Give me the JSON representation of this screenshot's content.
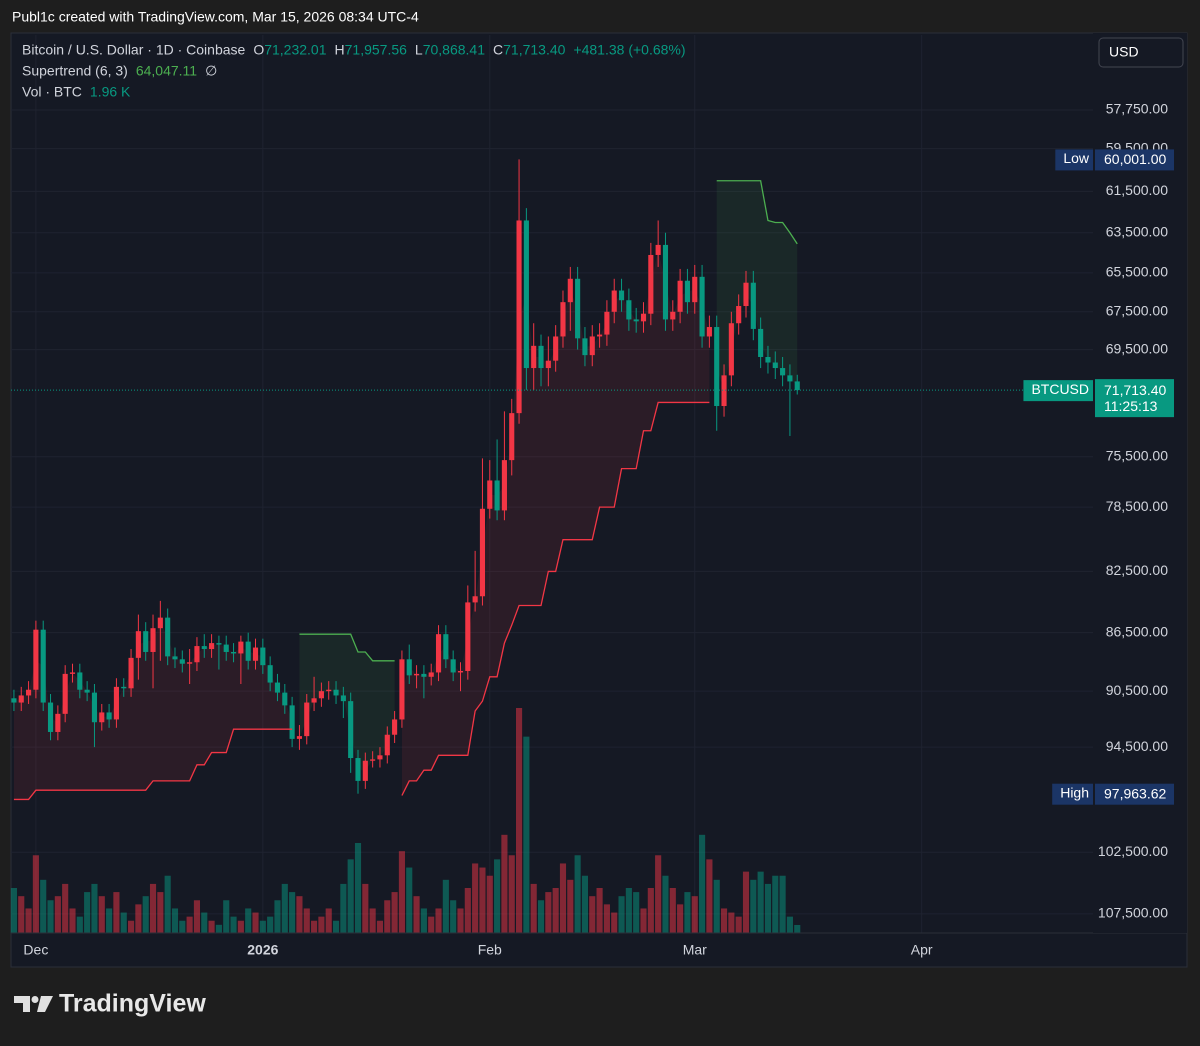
{
  "header": "Publ1c created with TradingView.com, Mar 15, 2026 08:34 UTC-4",
  "brand": "TradingView",
  "chart_data": {
    "type": "candlestick",
    "title": "Bitcoin / U.S. Dollar · 1D · Coinbase",
    "legend": {
      "o_key": "O",
      "o": "71,232.01",
      "h_key": "H",
      "h": "71,957.56",
      "l_key": "L",
      "l": "70,868.41",
      "c_key": "C",
      "c": "71,713.40",
      "change": "+481.38 (+0.68%)"
    },
    "currency": "USD",
    "up_color": "#089981",
    "down_color": "#f23645",
    "log_scale": true,
    "inverted": true,
    "grid": true,
    "xlim": [
      -0.4,
      147.4
    ],
    "ylim": [
      54500,
      109100
    ],
    "xticks": [
      {
        "value": 3,
        "label": "Dec"
      },
      {
        "value": 34,
        "label": "2026"
      },
      {
        "value": 65,
        "label": "Feb"
      },
      {
        "value": 93,
        "label": "Mar"
      },
      {
        "value": 124,
        "label": "Apr"
      }
    ],
    "yticks": [
      {
        "value": 57750,
        "label": "57,750.00"
      },
      {
        "value": 59500,
        "label": "59,500.00"
      },
      {
        "value": 61500,
        "label": "61,500.00"
      },
      {
        "value": 63500,
        "label": "63,500.00"
      },
      {
        "value": 65500,
        "label": "65,500.00"
      },
      {
        "value": 67500,
        "label": "67,500.00"
      },
      {
        "value": 69500,
        "label": "69,500.00"
      },
      {
        "value": 75500,
        "label": "75,500.00"
      },
      {
        "value": 78500,
        "label": "78,500.00"
      },
      {
        "value": 82500,
        "label": "82,500.00"
      },
      {
        "value": 86500,
        "label": "86,500.00"
      },
      {
        "value": 90500,
        "label": "90,500.00"
      },
      {
        "value": 94500,
        "label": "94,500.00"
      },
      {
        "value": 102500,
        "label": "102,500.00"
      },
      {
        "value": 107500,
        "label": "107,500.00"
      }
    ],
    "x": [
      0,
      1,
      2,
      3,
      4,
      5,
      6,
      7,
      8,
      9,
      10,
      11,
      12,
      13,
      14,
      15,
      16,
      17,
      18,
      19,
      20,
      21,
      22,
      23,
      24,
      25,
      26,
      27,
      28,
      29,
      30,
      31,
      32,
      33,
      34,
      35,
      36,
      37,
      38,
      39,
      40,
      41,
      42,
      43,
      44,
      45,
      46,
      47,
      48,
      49,
      50,
      51,
      52,
      53,
      54,
      55,
      56,
      57,
      58,
      59,
      60,
      61,
      62,
      63,
      64,
      65,
      66,
      67,
      68,
      69,
      70,
      71,
      72,
      73,
      74,
      75,
      76,
      77,
      78,
      79,
      80,
      81,
      82,
      83,
      84,
      85,
      86,
      87,
      88,
      89,
      90,
      91,
      92,
      93,
      94,
      95,
      96,
      97,
      98,
      99,
      100,
      101,
      102,
      103,
      104,
      105,
      106,
      107
    ],
    "open": [
      91000,
      91300,
      90800,
      90400,
      86300,
      91300,
      93400,
      92100,
      89300,
      89200,
      90400,
      90600,
      92700,
      92000,
      92500,
      90200,
      90300,
      88200,
      86400,
      87800,
      86200,
      85500,
      88100,
      88300,
      88600,
      88500,
      87400,
      87600,
      87200,
      87300,
      87800,
      87900,
      87100,
      88400,
      87500,
      88700,
      89900,
      90600,
      91500,
      93900,
      93700,
      91300,
      91000,
      90500,
      90400,
      90800,
      91200,
      95300,
      97000,
      95500,
      95400,
      95100,
      93600,
      92500,
      88300,
      89400,
      89300,
      89500,
      89200,
      86600,
      88300,
      89200,
      89100,
      84500,
      84100,
      78600,
      76900,
      78700,
      75700,
      73000,
      62900,
      70500,
      69300,
      70500,
      70100,
      68800,
      67000,
      65800,
      68900,
      69800,
      68800,
      68700,
      67500,
      66400,
      66900,
      67900,
      68000,
      67600,
      64600,
      64100,
      67900,
      67500,
      65900,
      67000,
      65700,
      68800,
      68300,
      72600,
      70900,
      68100,
      67200,
      66000,
      68400,
      69900,
      70200,
      70500,
      70900,
      71232.01
    ],
    "high": [
      91900,
      91900,
      91400,
      91000,
      91900,
      94000,
      94000,
      92700,
      89900,
      91000,
      91200,
      94500,
      93300,
      93100,
      93100,
      90900,
      90900,
      89700,
      88400,
      90300,
      88400,
      88700,
      88900,
      89200,
      90000,
      89100,
      88200,
      88200,
      89000,
      88400,
      88500,
      90000,
      89000,
      89000,
      89300,
      90500,
      91200,
      92100,
      94500,
      94700,
      94300,
      91900,
      91600,
      91100,
      91400,
      92400,
      96400,
      97963.62,
      97600,
      96000,
      96000,
      95700,
      94200,
      93100,
      90000,
      90300,
      91000,
      90100,
      89800,
      88900,
      89800,
      90500,
      89700,
      85100,
      84700,
      79200,
      79300,
      79300,
      76600,
      73600,
      71700,
      71700,
      71500,
      71500,
      70700,
      69400,
      68500,
      69500,
      70400,
      70400,
      69400,
      69300,
      68100,
      67500,
      68500,
      68600,
      68600,
      68200,
      65200,
      68500,
      68500,
      68100,
      67600,
      67600,
      69400,
      69400,
      74000,
      73200,
      71500,
      68700,
      67800,
      69000,
      70500,
      70800,
      71100,
      71500,
      74300,
      71957.56
    ],
    "low": [
      90400,
      90200,
      89800,
      85700,
      85700,
      90700,
      91500,
      88700,
      88600,
      88600,
      89800,
      90000,
      91400,
      91400,
      89600,
      89600,
      87600,
      85300,
      85800,
      85300,
      84400,
      84900,
      87500,
      87700,
      87600,
      86800,
      86600,
      86600,
      86700,
      86700,
      87200,
      86700,
      86500,
      86900,
      86900,
      88100,
      89300,
      90000,
      90900,
      92900,
      90700,
      89500,
      89900,
      89800,
      89800,
      90200,
      90600,
      94700,
      94900,
      94800,
      94500,
      93000,
      91900,
      87700,
      87300,
      88700,
      88700,
      88600,
      86000,
      86000,
      87700,
      88500,
      83400,
      81200,
      75600,
      75700,
      74500,
      72900,
      72200,
      60001,
      62300,
      68100,
      68700,
      68800,
      68200,
      66400,
      65200,
      65200,
      68300,
      68200,
      68100,
      66900,
      65800,
      65800,
      66300,
      67300,
      67000,
      64000,
      62900,
      63500,
      66900,
      65300,
      65300,
      65100,
      65100,
      67700,
      67700,
      70300,
      67500,
      66600,
      65400,
      65400,
      67800,
      69300,
      69600,
      69900,
      70300,
      70868.41
    ],
    "close": [
      91300,
      90800,
      90400,
      86300,
      91300,
      93400,
      92100,
      89300,
      89200,
      90400,
      90600,
      92700,
      92000,
      92500,
      90200,
      90300,
      88200,
      86400,
      87800,
      86200,
      85500,
      88100,
      88300,
      88600,
      88500,
      87400,
      87600,
      87200,
      87300,
      87800,
      87900,
      87100,
      88400,
      87500,
      88700,
      89900,
      90600,
      91500,
      93900,
      93700,
      91300,
      91000,
      90500,
      90400,
      90800,
      91200,
      95300,
      97000,
      95500,
      95400,
      95100,
      93600,
      92500,
      88300,
      89400,
      89300,
      89500,
      89200,
      86600,
      88300,
      89200,
      89100,
      84500,
      84100,
      78600,
      76900,
      78700,
      75700,
      73000,
      62900,
      70500,
      69300,
      70500,
      70100,
      68800,
      67000,
      65800,
      68900,
      69800,
      68800,
      68700,
      67500,
      66400,
      66900,
      67900,
      68000,
      67600,
      64600,
      64100,
      67900,
      67500,
      65900,
      67000,
      65700,
      68800,
      68300,
      72600,
      70900,
      68100,
      67200,
      66000,
      68400,
      69900,
      70200,
      70500,
      70900,
      71232.01,
      71713.4
    ],
    "volume": {
      "label": "Vol · BTC",
      "last_label": "1.96 K",
      "values": [
        11,
        9,
        6,
        19,
        13,
        8,
        9,
        12,
        6,
        4,
        10,
        12,
        9,
        6,
        10,
        5,
        3,
        7,
        9,
        12,
        10,
        14,
        6,
        3,
        4,
        8,
        5,
        3,
        2,
        8,
        4,
        3,
        6,
        5,
        3,
        4,
        8,
        12,
        10,
        9,
        6,
        3,
        4,
        6,
        3,
        12,
        18,
        22,
        12,
        6,
        3,
        8,
        10,
        20,
        16,
        9,
        6,
        4,
        6,
        13,
        8,
        6,
        11,
        17,
        16,
        14,
        18,
        24,
        19,
        55,
        48,
        12,
        8,
        10,
        11,
        17,
        13,
        19,
        14,
        9,
        11,
        7,
        5,
        9,
        11,
        10,
        6,
        11,
        19,
        14,
        11,
        7,
        10,
        9,
        24,
        18,
        13,
        6,
        5,
        4,
        15,
        13,
        15,
        12,
        14,
        14,
        4,
        1.96
      ]
    },
    "supertrend": {
      "label": "Supertrend (6, 3)",
      "last_label": "64,047.11",
      "symbol": "∅",
      "up_color": "#4caf50",
      "down_color": "#f23645",
      "up": [
        null,
        null,
        null,
        null,
        null,
        null,
        null,
        null,
        null,
        null,
        null,
        null,
        null,
        null,
        null,
        null,
        null,
        null,
        null,
        null,
        null,
        null,
        null,
        null,
        null,
        null,
        null,
        null,
        null,
        null,
        null,
        null,
        null,
        null,
        null,
        null,
        null,
        null,
        null,
        86600,
        86600,
        86600,
        86600,
        86600,
        86600,
        86600,
        86600,
        87800,
        87800,
        88400,
        88400,
        88400,
        88400,
        null,
        null,
        null,
        null,
        null,
        null,
        null,
        null,
        null,
        null,
        null,
        null,
        null,
        null,
        null,
        null,
        null,
        null,
        null,
        null,
        null,
        null,
        null,
        null,
        null,
        null,
        null,
        null,
        null,
        null,
        null,
        null,
        null,
        null,
        null,
        null,
        null,
        null,
        null,
        null,
        null,
        null,
        null,
        61000,
        61000,
        61000,
        61000,
        61000,
        61000,
        61000,
        62900,
        63000,
        63000,
        63500,
        64047.11
      ],
      "down": [
        98400,
        98400,
        98400,
        97700,
        97700,
        97700,
        97700,
        97700,
        97700,
        97700,
        97700,
        97700,
        97700,
        97700,
        97700,
        97700,
        97700,
        97700,
        97700,
        97000,
        97000,
        97000,
        97000,
        97000,
        97000,
        95800,
        95800,
        94900,
        94900,
        94900,
        93200,
        93200,
        93200,
        93200,
        93200,
        93200,
        93200,
        93200,
        93200,
        null,
        null,
        null,
        null,
        null,
        null,
        null,
        null,
        null,
        null,
        null,
        null,
        null,
        null,
        98100,
        97000,
        97000,
        96200,
        96200,
        95100,
        95100,
        95100,
        95100,
        95100,
        91900,
        91200,
        89500,
        89500,
        87200,
        86000,
        84700,
        84700,
        84700,
        84700,
        82500,
        82500,
        80500,
        80500,
        80500,
        80500,
        80500,
        78500,
        78500,
        78500,
        76200,
        76200,
        76200,
        74000,
        74000,
        72400,
        72400,
        72400,
        72400,
        72400,
        72400,
        72400,
        72400,
        null,
        null,
        null,
        null,
        null,
        null,
        null,
        null,
        null,
        null,
        null,
        null
      ]
    },
    "markers": {
      "low": {
        "label": "Low",
        "value": 60001,
        "value_label": "60,001.00"
      },
      "high": {
        "label": "High",
        "value": 97963.62,
        "value_label": "97,963.62"
      },
      "last": {
        "label": "BTCUSD",
        "value": 71713.4,
        "value_label": "71,713.40",
        "countdown": "11:25:13"
      }
    }
  }
}
